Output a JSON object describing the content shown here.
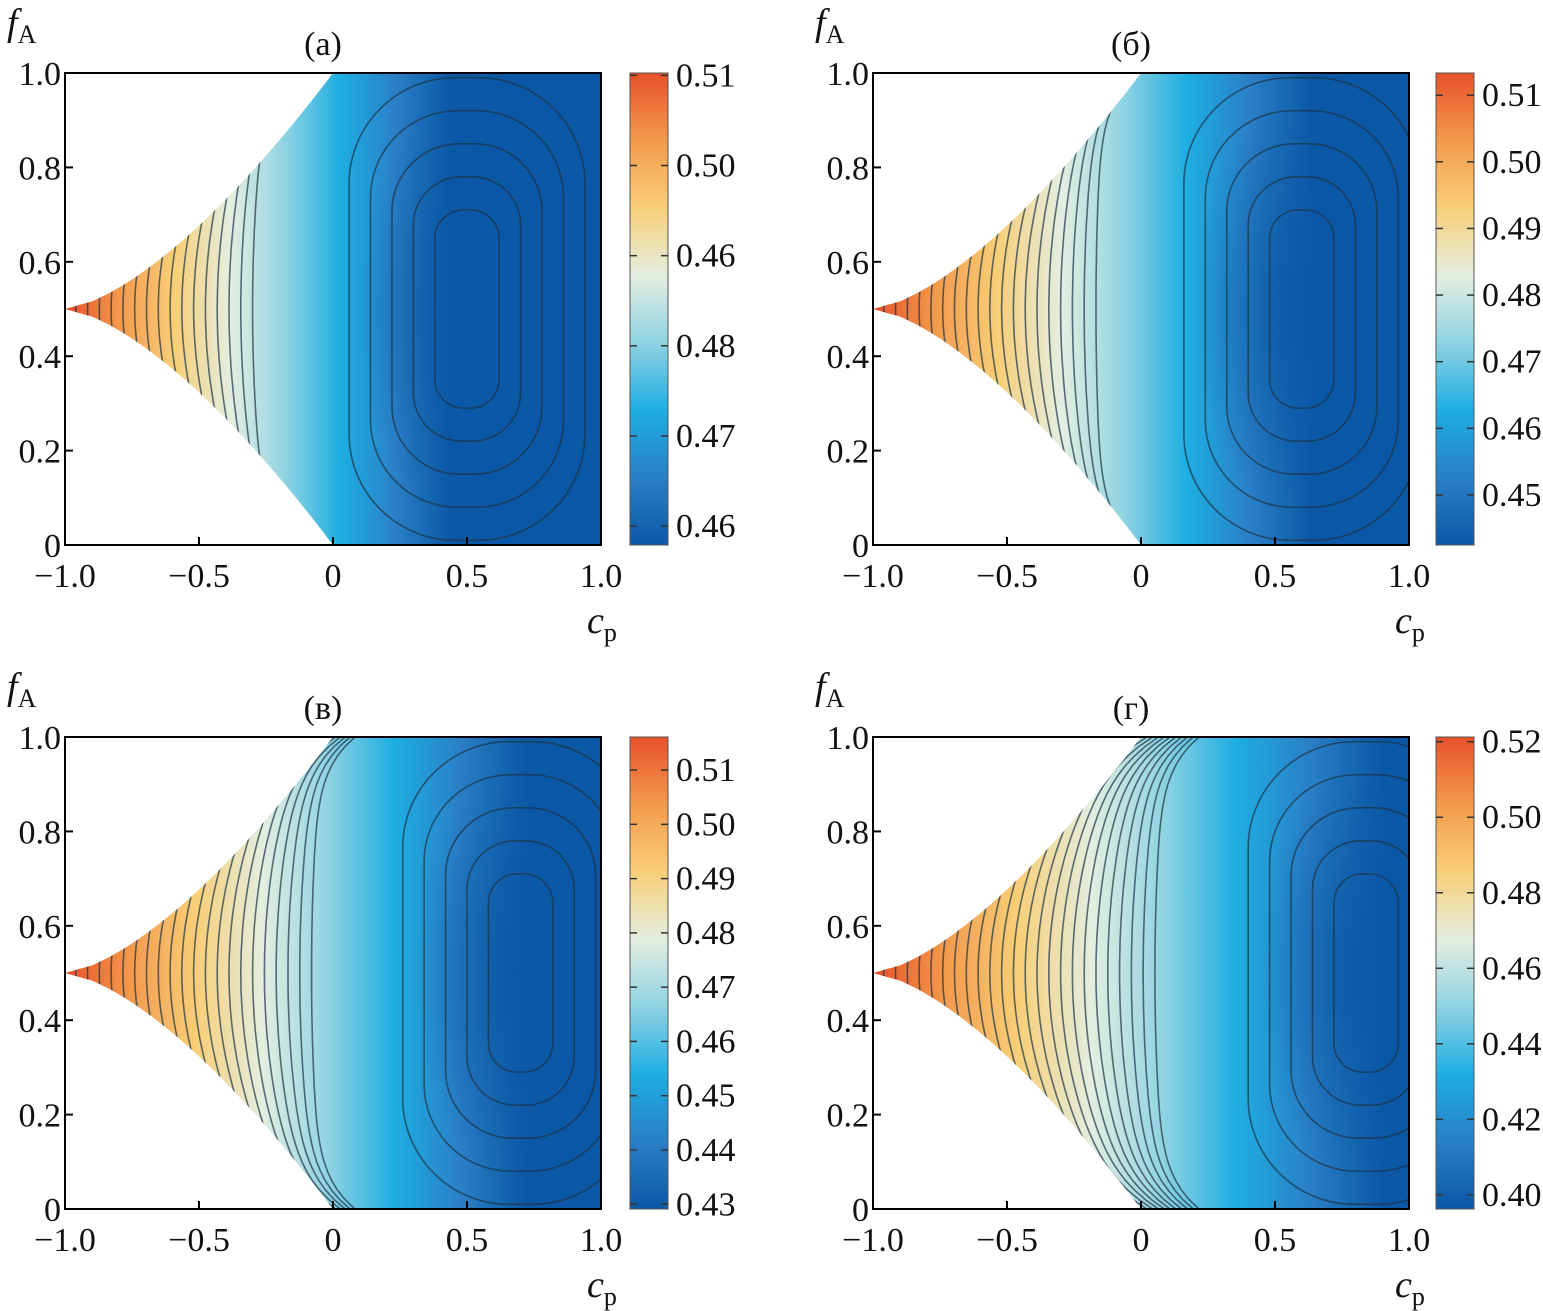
{
  "chart_data": [
    {
      "type": "contour",
      "title": "(а)",
      "xlabel": "c",
      "xlabel_sub": "p",
      "ylabel": "f",
      "ylabel_sub": "A",
      "xlim": [
        -1,
        1
      ],
      "ylim": [
        0,
        1
      ],
      "xticks": [
        {
          "value": -1,
          "label": "−1.0"
        },
        {
          "value": -0.5,
          "label": "−0.5"
        },
        0,
        0.5,
        {
          "value": 1,
          "label": "1.0"
        }
      ],
      "yticks": [
        0,
        0.2,
        0.4,
        0.6,
        0.8,
        {
          "value": 1,
          "label": "1.0"
        }
      ],
      "colorbar_ticks": [
        0.51,
        {
          "value": 0.5,
          "label": "0.50"
        },
        0.46,
        0.48,
        0.47,
        0.46
      ],
      "colormap": [
        "#e8502a",
        "#f39a4c",
        "#f8cf78",
        "#e3eee0",
        "#8fd3e2",
        "#1eaee2",
        "#2a7fc6",
        "#0b58a6"
      ]
    },
    {
      "type": "contour",
      "title": "(б)",
      "xlabel": "c",
      "xlabel_sub": "p",
      "ylabel": "f",
      "ylabel_sub": "A",
      "xlim": [
        -1,
        1
      ],
      "ylim": [
        0,
        1
      ],
      "xticks": [
        {
          "value": -1,
          "label": "−1.0"
        },
        {
          "value": -0.5,
          "label": "−0.5"
        },
        0,
        0.5,
        {
          "value": 1,
          "label": "1.0"
        }
      ],
      "yticks": [
        0,
        0.2,
        0.4,
        0.6,
        0.8,
        {
          "value": 1,
          "label": "1.0"
        }
      ],
      "colorbar_ticks": [
        0.51,
        {
          "value": 0.5,
          "label": "0.50"
        },
        0.49,
        0.48,
        0.47,
        0.46,
        0.45
      ],
      "colormap": [
        "#e8502a",
        "#f39a4c",
        "#f8cf78",
        "#e3eee0",
        "#8fd3e2",
        "#1eaee2",
        "#2a7fc6",
        "#0b58a6"
      ]
    },
    {
      "type": "contour",
      "title": "(в)",
      "xlabel": "c",
      "xlabel_sub": "p",
      "ylabel": "f",
      "ylabel_sub": "A",
      "xlim": [
        -1,
        1
      ],
      "ylim": [
        0,
        1
      ],
      "xticks": [
        {
          "value": -1,
          "label": "−1.0"
        },
        {
          "value": -0.5,
          "label": "−0.5"
        },
        0,
        0.5,
        {
          "value": 1,
          "label": "1.0"
        }
      ],
      "yticks": [
        0,
        0.2,
        0.4,
        0.6,
        0.8,
        {
          "value": 1,
          "label": "1.0"
        }
      ],
      "colorbar_ticks": [
        0.51,
        {
          "value": 0.5,
          "label": "0.50"
        },
        0.49,
        0.48,
        0.47,
        0.46,
        0.45,
        0.44,
        0.43
      ],
      "colormap": [
        "#e8502a",
        "#f39a4c",
        "#f8cf78",
        "#e3eee0",
        "#8fd3e2",
        "#1eaee2",
        "#2a7fc6",
        "#0b58a6"
      ]
    },
    {
      "type": "contour",
      "title": "(г)",
      "xlabel": "c",
      "xlabel_sub": "p",
      "ylabel": "f",
      "ylabel_sub": "A",
      "xlim": [
        -1,
        1
      ],
      "ylim": [
        0,
        1
      ],
      "xticks": [
        {
          "value": -1,
          "label": "−1.0"
        },
        {
          "value": -0.5,
          "label": "−0.5"
        },
        0,
        0.5,
        {
          "value": 1,
          "label": "1.0"
        }
      ],
      "yticks": [
        0,
        0.2,
        0.4,
        0.6,
        0.8,
        {
          "value": 1,
          "label": "1.0"
        }
      ],
      "colorbar_ticks": [
        0.52,
        {
          "value": 0.5,
          "label": "0.50"
        },
        0.48,
        0.46,
        0.44,
        0.42,
        {
          "value": 0.4,
          "label": "0.40"
        }
      ],
      "colormap": [
        "#e8502a",
        "#f39a4c",
        "#f8cf78",
        "#e3eee0",
        "#8fd3e2",
        "#1eaee2",
        "#2a7fc6",
        "#0b58a6"
      ]
    }
  ]
}
